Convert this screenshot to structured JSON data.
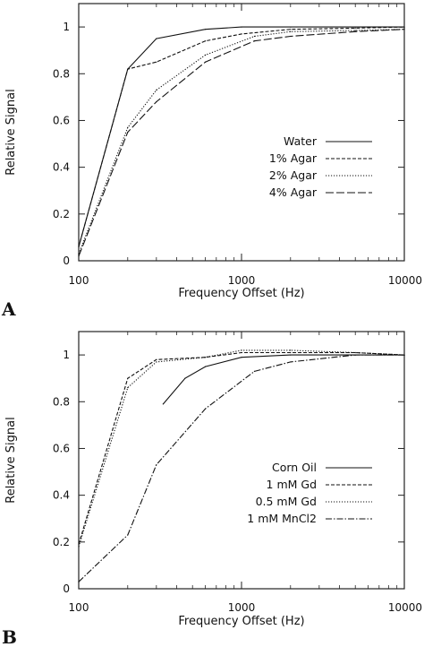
{
  "chart_data": [
    {
      "type": "line",
      "panel_label": "A",
      "title": "",
      "xlabel": "Frequency Offset (Hz)",
      "ylabel": "Relative Signal",
      "x_scale": "log",
      "xlim": [
        100,
        10000
      ],
      "ylim": [
        0,
        1.1
      ],
      "x_ticks": [
        "100",
        "1000",
        "10000"
      ],
      "y_ticks": [
        "0",
        "0.2",
        "0.4",
        "0.6",
        "0.8",
        "1"
      ],
      "grid": false,
      "legend_position": "right",
      "series": [
        {
          "name": "Water",
          "dash": "solid",
          "x": [
            100,
            200,
            300,
            600,
            1000,
            2000,
            5000,
            10000
          ],
          "y": [
            0.06,
            0.82,
            0.95,
            0.99,
            1.0,
            1.0,
            1.0,
            1.0
          ]
        },
        {
          "name": "1% Agar",
          "dash": "dash",
          "x": [
            100,
            200,
            300,
            600,
            1000,
            2000,
            5000,
            10000
          ],
          "y": [
            0.06,
            0.82,
            0.85,
            0.94,
            0.97,
            0.99,
            0.995,
            1.0
          ]
        },
        {
          "name": "2% Agar",
          "dash": "dot",
          "x": [
            100,
            200,
            300,
            600,
            1200,
            2000,
            5000,
            10000
          ],
          "y": [
            0.03,
            0.57,
            0.73,
            0.88,
            0.96,
            0.98,
            0.985,
            0.99
          ]
        },
        {
          "name": "4% Agar",
          "dash": "longdash",
          "x": [
            100,
            200,
            300,
            600,
            1200,
            2000,
            5000,
            10000
          ],
          "y": [
            0.02,
            0.55,
            0.68,
            0.85,
            0.94,
            0.96,
            0.98,
            0.99
          ]
        }
      ]
    },
    {
      "type": "line",
      "panel_label": "B",
      "title": "",
      "xlabel": "Frequency Offset (Hz)",
      "ylabel": "Relative Signal",
      "x_scale": "log",
      "xlim": [
        100,
        10000
      ],
      "ylim": [
        0,
        1.1
      ],
      "x_ticks": [
        "100",
        "1000",
        "10000"
      ],
      "y_ticks": [
        "0",
        "0.2",
        "0.4",
        "0.6",
        "0.8",
        "1"
      ],
      "grid": false,
      "legend_position": "right",
      "series": [
        {
          "name": "Corn Oil",
          "dash": "solid",
          "x": [
            330,
            450,
            600,
            1000,
            2000,
            5000,
            10000
          ],
          "y": [
            0.79,
            0.9,
            0.95,
            0.99,
            1.0,
            1.0,
            1.0
          ]
        },
        {
          "name": "1 mM  Gd",
          "dash": "dash",
          "x": [
            100,
            200,
            300,
            600,
            1000,
            2000,
            5000,
            10000
          ],
          "y": [
            0.19,
            0.9,
            0.98,
            0.99,
            1.01,
            1.01,
            1.01,
            1.0
          ]
        },
        {
          "name": "0.5 mM Gd",
          "dash": "dot",
          "x": [
            100,
            200,
            300,
            600,
            1000,
            2000,
            5000,
            10000
          ],
          "y": [
            0.18,
            0.86,
            0.97,
            0.99,
            1.02,
            1.02,
            1.01,
            1.0
          ]
        },
        {
          "name": "1 mM MnCl2",
          "dash": "dashdot",
          "x": [
            100,
            200,
            300,
            600,
            1200,
            2000,
            5000,
            10000
          ],
          "y": [
            0.03,
            0.23,
            0.53,
            0.77,
            0.93,
            0.97,
            1.0,
            1.0
          ]
        }
      ]
    }
  ]
}
